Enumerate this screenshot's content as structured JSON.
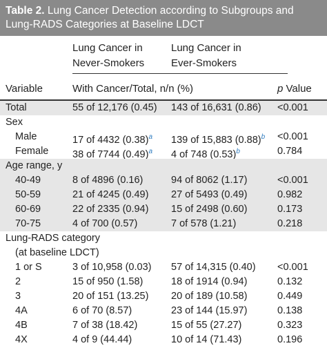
{
  "title": {
    "label": "Table 2.",
    "lines": [
      "Lung Cancer Detection according to Subgroups and",
      "Lung-RADS Categories at Baseline LDCT"
    ]
  },
  "column_groups": [
    [
      "Lung Cancer in",
      "Never-Smokers"
    ],
    [
      "Lung Cancer in",
      "Ever-Smokers"
    ]
  ],
  "header": {
    "variable": "Variable",
    "measure": "With Cancer/Total, n/n (%)",
    "p_value": {
      "italic": "p",
      "text": "Value"
    }
  },
  "sections": [
    {
      "rows": [
        {
          "label": "Total",
          "cells": [
            "55 of 12,176 (0.45)",
            "143 of 16,631 (0.86)",
            "<0.001"
          ]
        }
      ]
    },
    {
      "heading": [
        "Sex"
      ],
      "rows": [
        {
          "label": "Male",
          "cells": [
            {
              "text": "17 of 4432 (0.38)",
              "note": "a"
            },
            {
              "text": "139 of 15,883 (0.88)",
              "note": "b"
            },
            "<0.001"
          ]
        },
        {
          "label": "Female",
          "cells": [
            {
              "text": "38 of 7744 (0.49)",
              "note": "a"
            },
            {
              "text": "4 of 748 (0.53)",
              "note": "b"
            },
            "0.784"
          ]
        }
      ]
    },
    {
      "heading": [
        "Age range, y"
      ],
      "rows": [
        {
          "label": "40-49",
          "cells": [
            "8 of 4896 (0.16)",
            "94 of 8062 (1.17)",
            "<0.001"
          ]
        },
        {
          "label": "50-59",
          "cells": [
            "21 of 4245 (0.49)",
            "27 of 5493 (0.49)",
            "0.982"
          ]
        },
        {
          "label": "60-69",
          "cells": [
            "22 of 2335 (0.94)",
            "15 of 2498 (0.60)",
            "0.173"
          ]
        },
        {
          "label": "70-75",
          "cells": [
            "4 of 700 (0.57)",
            "7 of 578 (1.21)",
            "0.218"
          ]
        }
      ]
    },
    {
      "heading": [
        "Lung-RADS category",
        "(at baseline LDCT)"
      ],
      "rows": [
        {
          "label": "1 or S",
          "cells": [
            "3 of 10,958 (0.03)",
            "57 of 14,315 (0.40)",
            "<0.001"
          ]
        },
        {
          "label": "2",
          "cells": [
            "15 of 950 (1.58)",
            "18 of 1914 (0.94)",
            "0.132"
          ]
        },
        {
          "label": "3",
          "cells": [
            "20 of 151 (13.25)",
            "20 of 189 (10.58)",
            "0.449"
          ]
        },
        {
          "label": "4A",
          "cells": [
            "6 of 70 (8.57)",
            "23 of 144 (15.97)",
            "0.138"
          ]
        },
        {
          "label": "4B",
          "cells": [
            "7 of 38 (18.42)",
            "15 of 55 (27.27)",
            "0.323"
          ]
        },
        {
          "label": "4X",
          "cells": [
            "4 of 9 (44.44)",
            "10 of 14 (71.43)",
            "0.196"
          ]
        }
      ]
    }
  ]
}
